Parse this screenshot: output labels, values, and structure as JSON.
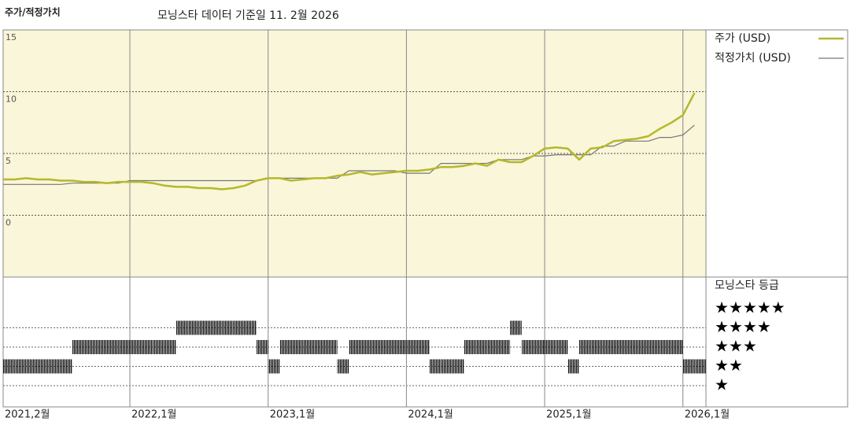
{
  "chart_data": [
    {
      "type": "line",
      "title": "주가/적정가치",
      "subtitle": "모닝스타 데이터 기준일 11. 2월 2026",
      "x": [
        "2021-02",
        "2021-03",
        "2021-04",
        "2021-05",
        "2021-06",
        "2021-07",
        "2021-08",
        "2021-09",
        "2021-10",
        "2021-11",
        "2021-12",
        "2022-01",
        "2022-02",
        "2022-03",
        "2022-04",
        "2022-05",
        "2022-06",
        "2022-07",
        "2022-08",
        "2022-09",
        "2022-10",
        "2022-11",
        "2022-12",
        "2023-01",
        "2023-02",
        "2023-03",
        "2023-04",
        "2023-05",
        "2023-06",
        "2023-07",
        "2023-08",
        "2023-09",
        "2023-10",
        "2023-11",
        "2023-12",
        "2024-01",
        "2024-02",
        "2024-03",
        "2024-04",
        "2024-05",
        "2024-06",
        "2024-07",
        "2024-08",
        "2024-09",
        "2024-10",
        "2024-11",
        "2024-12",
        "2025-01",
        "2025-02",
        "2025-03",
        "2025-04",
        "2025-05",
        "2025-06",
        "2025-07",
        "2025-08",
        "2025-09",
        "2025-10",
        "2025-11",
        "2025-12",
        "2026-01",
        "2026-02"
      ],
      "series": [
        {
          "name": "주가 (USD)",
          "color": "#b5b82c",
          "width": 2.5,
          "values": [
            2.9,
            2.9,
            3.0,
            2.9,
            2.9,
            2.8,
            2.8,
            2.7,
            2.7,
            2.6,
            2.7,
            2.7,
            2.7,
            2.6,
            2.4,
            2.3,
            2.3,
            2.2,
            2.2,
            2.1,
            2.2,
            2.4,
            2.8,
            3.0,
            3.0,
            2.8,
            2.9,
            3.0,
            3.0,
            3.2,
            3.3,
            3.5,
            3.3,
            3.4,
            3.5,
            3.6,
            3.6,
            3.7,
            3.9,
            3.9,
            4.0,
            4.2,
            4.0,
            4.5,
            4.3,
            4.3,
            4.8,
            5.4,
            5.5,
            5.4,
            4.5,
            5.4,
            5.5,
            6.0,
            6.1,
            6.2,
            6.4,
            7.0,
            7.5,
            8.1,
            9.9
          ]
        },
        {
          "name": "적정가치 (USD)",
          "color": "#777777",
          "width": 1.2,
          "values": [
            2.5,
            2.5,
            2.5,
            2.5,
            2.5,
            2.5,
            2.6,
            2.6,
            2.6,
            2.6,
            2.6,
            2.8,
            2.8,
            2.8,
            2.8,
            2.8,
            2.8,
            2.8,
            2.8,
            2.8,
            2.8,
            2.8,
            2.8,
            3.0,
            3.0,
            3.0,
            3.0,
            3.0,
            3.0,
            3.0,
            3.6,
            3.6,
            3.6,
            3.6,
            3.6,
            3.4,
            3.4,
            3.4,
            4.2,
            4.2,
            4.2,
            4.2,
            4.2,
            4.5,
            4.5,
            4.5,
            4.8,
            4.8,
            4.9,
            4.9,
            4.9,
            4.9,
            5.6,
            5.6,
            6.0,
            6.0,
            6.0,
            6.3,
            6.3,
            6.5,
            7.3
          ]
        }
      ],
      "xlim": [
        "2021-02",
        "2026-03"
      ],
      "xticks": [
        {
          "value": "2021-02",
          "label": "2021,2월"
        },
        {
          "value": "2022-01",
          "label": "2022,1월"
        },
        {
          "value": "2023-01",
          "label": "2023,1월"
        },
        {
          "value": "2024-01",
          "label": "2024,1월"
        },
        {
          "value": "2025-01",
          "label": "2025,1월"
        },
        {
          "value": "2026-01",
          "label": "2026,1월"
        }
      ],
      "ylim": [
        -5,
        15
      ],
      "yticks": [
        0,
        5,
        10,
        15
      ],
      "grid": true
    },
    {
      "type": "rating",
      "title": "모닝스타 등급",
      "levels": [
        {
          "value": 5,
          "label": "★★★★★"
        },
        {
          "value": 4,
          "label": "★★★★"
        },
        {
          "value": 3,
          "label": "★★★"
        },
        {
          "value": 2,
          "label": "★★"
        },
        {
          "value": 1,
          "label": "★"
        }
      ],
      "values": [
        2,
        2,
        2,
        2,
        2,
        2,
        3,
        3,
        3,
        3,
        3,
        3,
        3,
        3,
        3,
        4,
        4,
        4,
        4,
        4,
        4,
        4,
        3,
        2,
        3,
        3,
        3,
        3,
        3,
        2,
        3,
        3,
        3,
        3,
        3,
        3,
        3,
        2,
        2,
        2,
        3,
        3,
        3,
        3,
        4,
        3,
        3,
        3,
        3,
        2,
        3,
        3,
        3,
        3,
        3,
        3,
        3,
        3,
        3,
        2,
        2
      ]
    }
  ]
}
